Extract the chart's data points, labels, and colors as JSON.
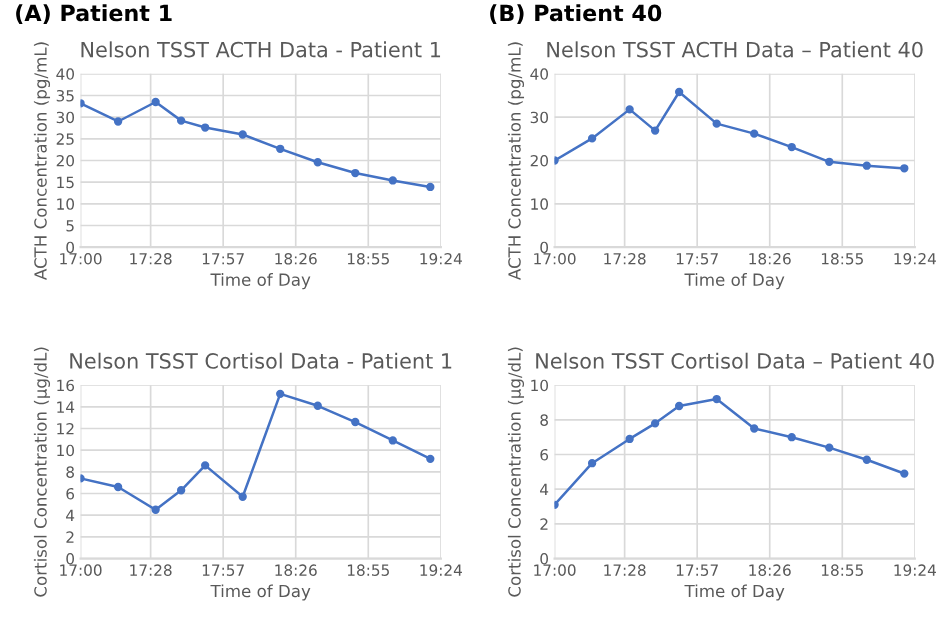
{
  "chart_data": [
    {
      "type": "line",
      "annotations": [
        "(A) Patient 1"
      ],
      "title": "Nelson TSST ACTH Data - Patient 1",
      "xlabel": "Time of Day",
      "ylabel": "ACTH Concentration (pg/mL)",
      "x": [
        17.0,
        17.25,
        17.5,
        17.67,
        17.83,
        18.08,
        18.33,
        18.58,
        18.83,
        19.08,
        19.33
      ],
      "series": [
        {
          "color": "#4472c4",
          "values": [
            33.2,
            29,
            33.5,
            29.2,
            27.6,
            26,
            22.7,
            19.6,
            17.1,
            15.4,
            13.9
          ]
        }
      ],
      "xlim": [
        17.0,
        19.4
      ],
      "xticks": [
        {
          "value": 17.0,
          "label": "17:00"
        },
        {
          "value": 17.4667,
          "label": "17:28"
        },
        {
          "value": 17.95,
          "label": "17:57"
        },
        {
          "value": 18.4333,
          "label": "18:26"
        },
        {
          "value": 18.9167,
          "label": "18:55"
        },
        {
          "value": 19.4,
          "label": "19:24"
        }
      ],
      "ylim": [
        0,
        40
      ],
      "yticks": [
        0,
        5,
        10,
        15,
        20,
        25,
        30,
        35,
        40
      ],
      "grid": true,
      "marker": "circle",
      "line_style": "solid"
    },
    {
      "type": "line",
      "annotations": [
        "(B) Patient 40"
      ],
      "title": "Nelson TSST ACTH Data – Patient 40",
      "xlabel": "Time of Day",
      "ylabel": "ACTH Concentration (pg/mL)",
      "x": [
        17.0,
        17.25,
        17.5,
        17.67,
        17.83,
        18.08,
        18.33,
        18.58,
        18.83,
        19.08,
        19.33
      ],
      "series": [
        {
          "color": "#4472c4",
          "values": [
            20,
            25.1,
            31.8,
            26.9,
            35.8,
            28.5,
            26.2,
            23.1,
            19.7,
            18.8,
            18.2
          ]
        }
      ],
      "xlim": [
        17.0,
        19.4
      ],
      "xticks": [
        {
          "value": 17.0,
          "label": "17:00"
        },
        {
          "value": 17.4667,
          "label": "17:28"
        },
        {
          "value": 17.95,
          "label": "17:57"
        },
        {
          "value": 18.4333,
          "label": "18:26"
        },
        {
          "value": 18.9167,
          "label": "18:55"
        },
        {
          "value": 19.4,
          "label": "19:24"
        }
      ],
      "ylim": [
        0,
        40
      ],
      "yticks": [
        0,
        10,
        20,
        30,
        40
      ],
      "grid": true,
      "marker": "circle",
      "line_style": "solid"
    },
    {
      "type": "line",
      "title": "Nelson TSST Cortisol Data - Patient 1",
      "xlabel": "Time of Day",
      "ylabel": "Cortisol Concentration (µg/dL)",
      "x": [
        17.0,
        17.25,
        17.5,
        17.67,
        17.83,
        18.08,
        18.33,
        18.58,
        18.83,
        19.08,
        19.33
      ],
      "series": [
        {
          "color": "#4472c4",
          "values": [
            7.4,
            6.6,
            4.5,
            6.3,
            8.6,
            5.7,
            15.2,
            14.1,
            12.6,
            10.9,
            9.2
          ]
        }
      ],
      "xlim": [
        17.0,
        19.4
      ],
      "xticks": [
        {
          "value": 17.0,
          "label": "17:00"
        },
        {
          "value": 17.4667,
          "label": "17:28"
        },
        {
          "value": 17.95,
          "label": "17:57"
        },
        {
          "value": 18.4333,
          "label": "18:26"
        },
        {
          "value": 18.9167,
          "label": "18:55"
        },
        {
          "value": 19.4,
          "label": "19:24"
        }
      ],
      "ylim": [
        0,
        16
      ],
      "yticks": [
        0,
        2,
        4,
        6,
        8,
        10,
        12,
        14,
        16
      ],
      "grid": true,
      "marker": "circle",
      "line_style": "solid"
    },
    {
      "type": "line",
      "title": "Nelson TSST Cortisol Data – Patient 40",
      "xlabel": "Time of Day",
      "ylabel": "Cortisol Concentration (µg/dL)",
      "x": [
        17.0,
        17.25,
        17.5,
        17.67,
        17.83,
        18.08,
        18.33,
        18.58,
        18.83,
        19.08,
        19.33
      ],
      "series": [
        {
          "color": "#4472c4",
          "values": [
            3.1,
            5.5,
            6.9,
            7.8,
            8.8,
            9.2,
            7.5,
            7.0,
            6.4,
            5.7,
            4.9
          ]
        }
      ],
      "xlim": [
        17.0,
        19.4
      ],
      "xticks": [
        {
          "value": 17.0,
          "label": "17:00"
        },
        {
          "value": 17.4667,
          "label": "17:28"
        },
        {
          "value": 17.95,
          "label": "17:57"
        },
        {
          "value": 18.4333,
          "label": "18:26"
        },
        {
          "value": 18.9167,
          "label": "18:55"
        },
        {
          "value": 19.4,
          "label": "19:24"
        }
      ],
      "ylim": [
        0,
        10
      ],
      "yticks": [
        0,
        2,
        4,
        6,
        8,
        10
      ],
      "grid": true,
      "marker": "circle",
      "line_style": "solid"
    }
  ]
}
